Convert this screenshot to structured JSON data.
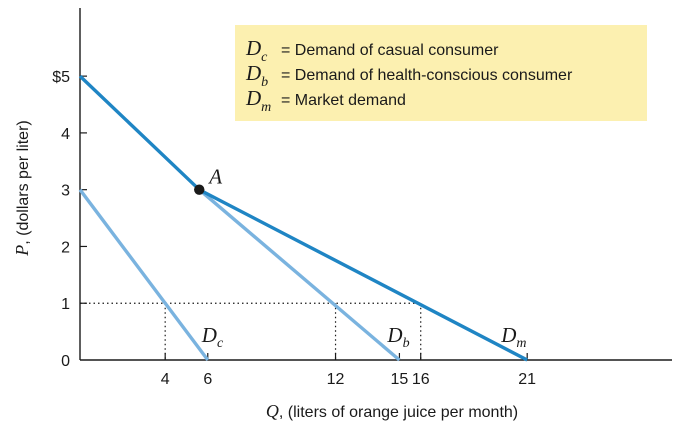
{
  "chart_data": {
    "type": "line",
    "xlabel_symbol": "Q",
    "xlabel": ", (liters of orange juice per month)",
    "ylabel_symbol": "P",
    "ylabel": ", (dollars per liter)",
    "xlim": [
      0,
      27.8
    ],
    "ylim": [
      0,
      6.2
    ],
    "x_ticks": [
      {
        "value": 4,
        "label": "4"
      },
      {
        "value": 6,
        "label": "6"
      },
      {
        "value": 12,
        "label": "12"
      },
      {
        "value": 15,
        "label": "15"
      },
      {
        "value": 16,
        "label": "16"
      },
      {
        "value": 21,
        "label": "21"
      }
    ],
    "y_ticks": [
      {
        "value": 0,
        "label": "0"
      },
      {
        "value": 1,
        "label": "1"
      },
      {
        "value": 2,
        "label": "2"
      },
      {
        "value": 3,
        "label": "3"
      },
      {
        "value": 4,
        "label": "4"
      },
      {
        "value": 5,
        "label": "$5"
      }
    ],
    "series": [
      {
        "name": "Dc",
        "symbol": "D",
        "subscript": "c",
        "color": "#7ab3df",
        "points": [
          [
            0,
            3
          ],
          [
            6,
            0
          ]
        ],
        "label_at": [
          6,
          0
        ]
      },
      {
        "name": "Db",
        "symbol": "D",
        "subscript": "b",
        "color": "#7ab3df",
        "points": [
          [
            5.6,
            3
          ],
          [
            15,
            0
          ]
        ],
        "label_at": [
          15,
          0
        ]
      },
      {
        "name": "Dm",
        "symbol": "D",
        "subscript": "m",
        "color": "#1f85c4",
        "points": [
          [
            0,
            5
          ],
          [
            5.6,
            3
          ],
          [
            21,
            0
          ]
        ],
        "label_at": [
          21,
          0
        ]
      }
    ],
    "point": {
      "label": "A",
      "x": 5.6,
      "y": 3
    },
    "reference_lines": {
      "price": 1,
      "drop_at": [
        4,
        12,
        16
      ]
    },
    "legend": {
      "placement": "top-right",
      "background": "#fcf0b0",
      "entries": [
        {
          "symbol": "D",
          "subscript": "c",
          "text": "= Demand of casual consumer"
        },
        {
          "symbol": "D",
          "subscript": "b",
          "text": "= Demand of health-conscious consumer"
        },
        {
          "symbol": "D",
          "subscript": "m",
          "text": "= Market demand"
        }
      ]
    }
  }
}
